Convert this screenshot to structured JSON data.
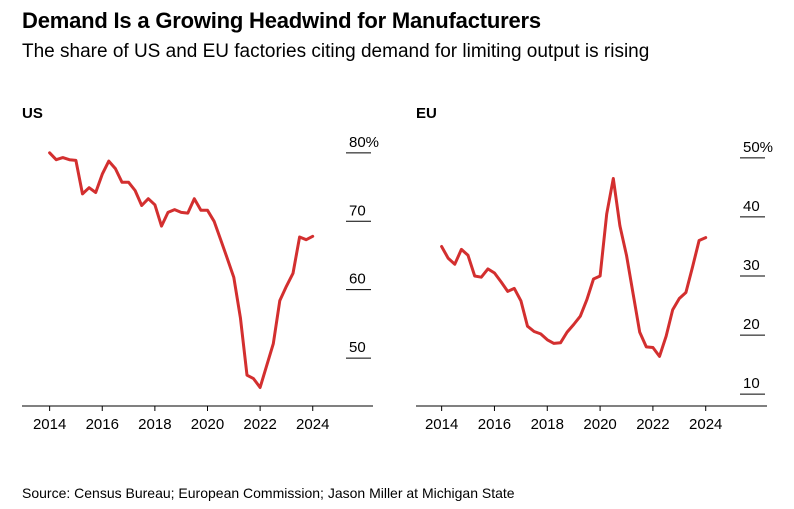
{
  "header": {
    "title": "Demand Is a Growing Headwind for Manufacturers",
    "subtitle": "The share of US and EU factories citing demand for limiting output is rising"
  },
  "footer": {
    "source": "Source: Census Bureau; European Commission; Jason Miller at Michigan State"
  },
  "colors": {
    "line": "#d32f2f",
    "axis": "#000000"
  },
  "chart_data": [
    {
      "type": "line",
      "panel_title": "US",
      "xlim": [
        2013.9,
        2024.2
      ],
      "ylim": [
        43,
        81
      ],
      "x_ticks": [
        2014,
        2016,
        2018,
        2020,
        2022,
        2024
      ],
      "x_tick_labels": [
        "2014",
        "2016",
        "2018",
        "2020",
        "2022",
        "2024"
      ],
      "y_ticks": [
        50,
        60,
        70,
        80
      ],
      "y_tick_labels": [
        "50",
        "60",
        "70",
        "80%"
      ],
      "series": [
        {
          "x": [
            2014.0,
            2014.25,
            2014.5,
            2014.75,
            2015.0,
            2015.25,
            2015.5,
            2015.75,
            2016.0,
            2016.25,
            2016.5,
            2016.75,
            2017.0,
            2017.25,
            2017.5,
            2017.75,
            2018.0,
            2018.25,
            2018.5,
            2018.75,
            2019.0,
            2019.25,
            2019.5,
            2019.75,
            2020.0,
            2020.25,
            2020.5,
            2020.75,
            2021.0,
            2021.25,
            2021.5,
            2021.75,
            2022.0,
            2022.25,
            2022.5,
            2022.75,
            2023.0,
            2023.25,
            2023.5,
            2023.75,
            2024.0
          ],
          "y": [
            80.0,
            79.0,
            79.3,
            79.0,
            78.9,
            74.0,
            74.9,
            74.2,
            76.9,
            78.8,
            77.7,
            75.7,
            75.7,
            74.5,
            72.3,
            73.3,
            72.4,
            69.3,
            71.3,
            71.7,
            71.3,
            71.2,
            73.3,
            71.6,
            71.6,
            70.0,
            67.3,
            64.6,
            61.8,
            55.9,
            47.5,
            47.0,
            45.7,
            48.9,
            52.1,
            58.4,
            60.5,
            62.4,
            67.7,
            67.3,
            67.8
          ]
        }
      ]
    },
    {
      "type": "line",
      "panel_title": "EU",
      "xlim": [
        2013.9,
        2024.2
      ],
      "ylim": [
        8,
        52
      ],
      "x_ticks": [
        2014,
        2016,
        2018,
        2020,
        2022,
        2024
      ],
      "x_tick_labels": [
        "2014",
        "2016",
        "2018",
        "2020",
        "2022",
        "2024"
      ],
      "y_ticks": [
        10,
        20,
        30,
        40,
        50
      ],
      "y_tick_labels": [
        "10",
        "20",
        "30",
        "40",
        "50%"
      ],
      "series": [
        {
          "x": [
            2014.0,
            2014.25,
            2014.5,
            2014.75,
            2015.0,
            2015.25,
            2015.5,
            2015.75,
            2016.0,
            2016.25,
            2016.5,
            2016.75,
            2017.0,
            2017.25,
            2017.5,
            2017.75,
            2018.0,
            2018.25,
            2018.5,
            2018.75,
            2019.0,
            2019.25,
            2019.5,
            2019.75,
            2020.0,
            2020.25,
            2020.5,
            2020.75,
            2021.0,
            2021.25,
            2021.5,
            2021.75,
            2022.0,
            2022.25,
            2022.5,
            2022.75,
            2023.0,
            2023.25,
            2023.5,
            2023.75,
            2024.0
          ],
          "y": [
            35.0,
            33.0,
            32.0,
            34.5,
            33.5,
            30.0,
            29.8,
            31.2,
            30.5,
            29.0,
            27.4,
            27.9,
            25.8,
            21.5,
            20.6,
            20.2,
            19.2,
            18.6,
            18.7,
            20.5,
            21.8,
            23.2,
            26.0,
            29.5,
            30.0,
            40.5,
            46.5,
            38.5,
            33.5,
            27.0,
            20.5,
            18.0,
            17.9,
            16.4,
            19.8,
            24.3,
            26.2,
            27.2,
            31.5,
            36.0,
            36.5
          ]
        }
      ]
    }
  ]
}
